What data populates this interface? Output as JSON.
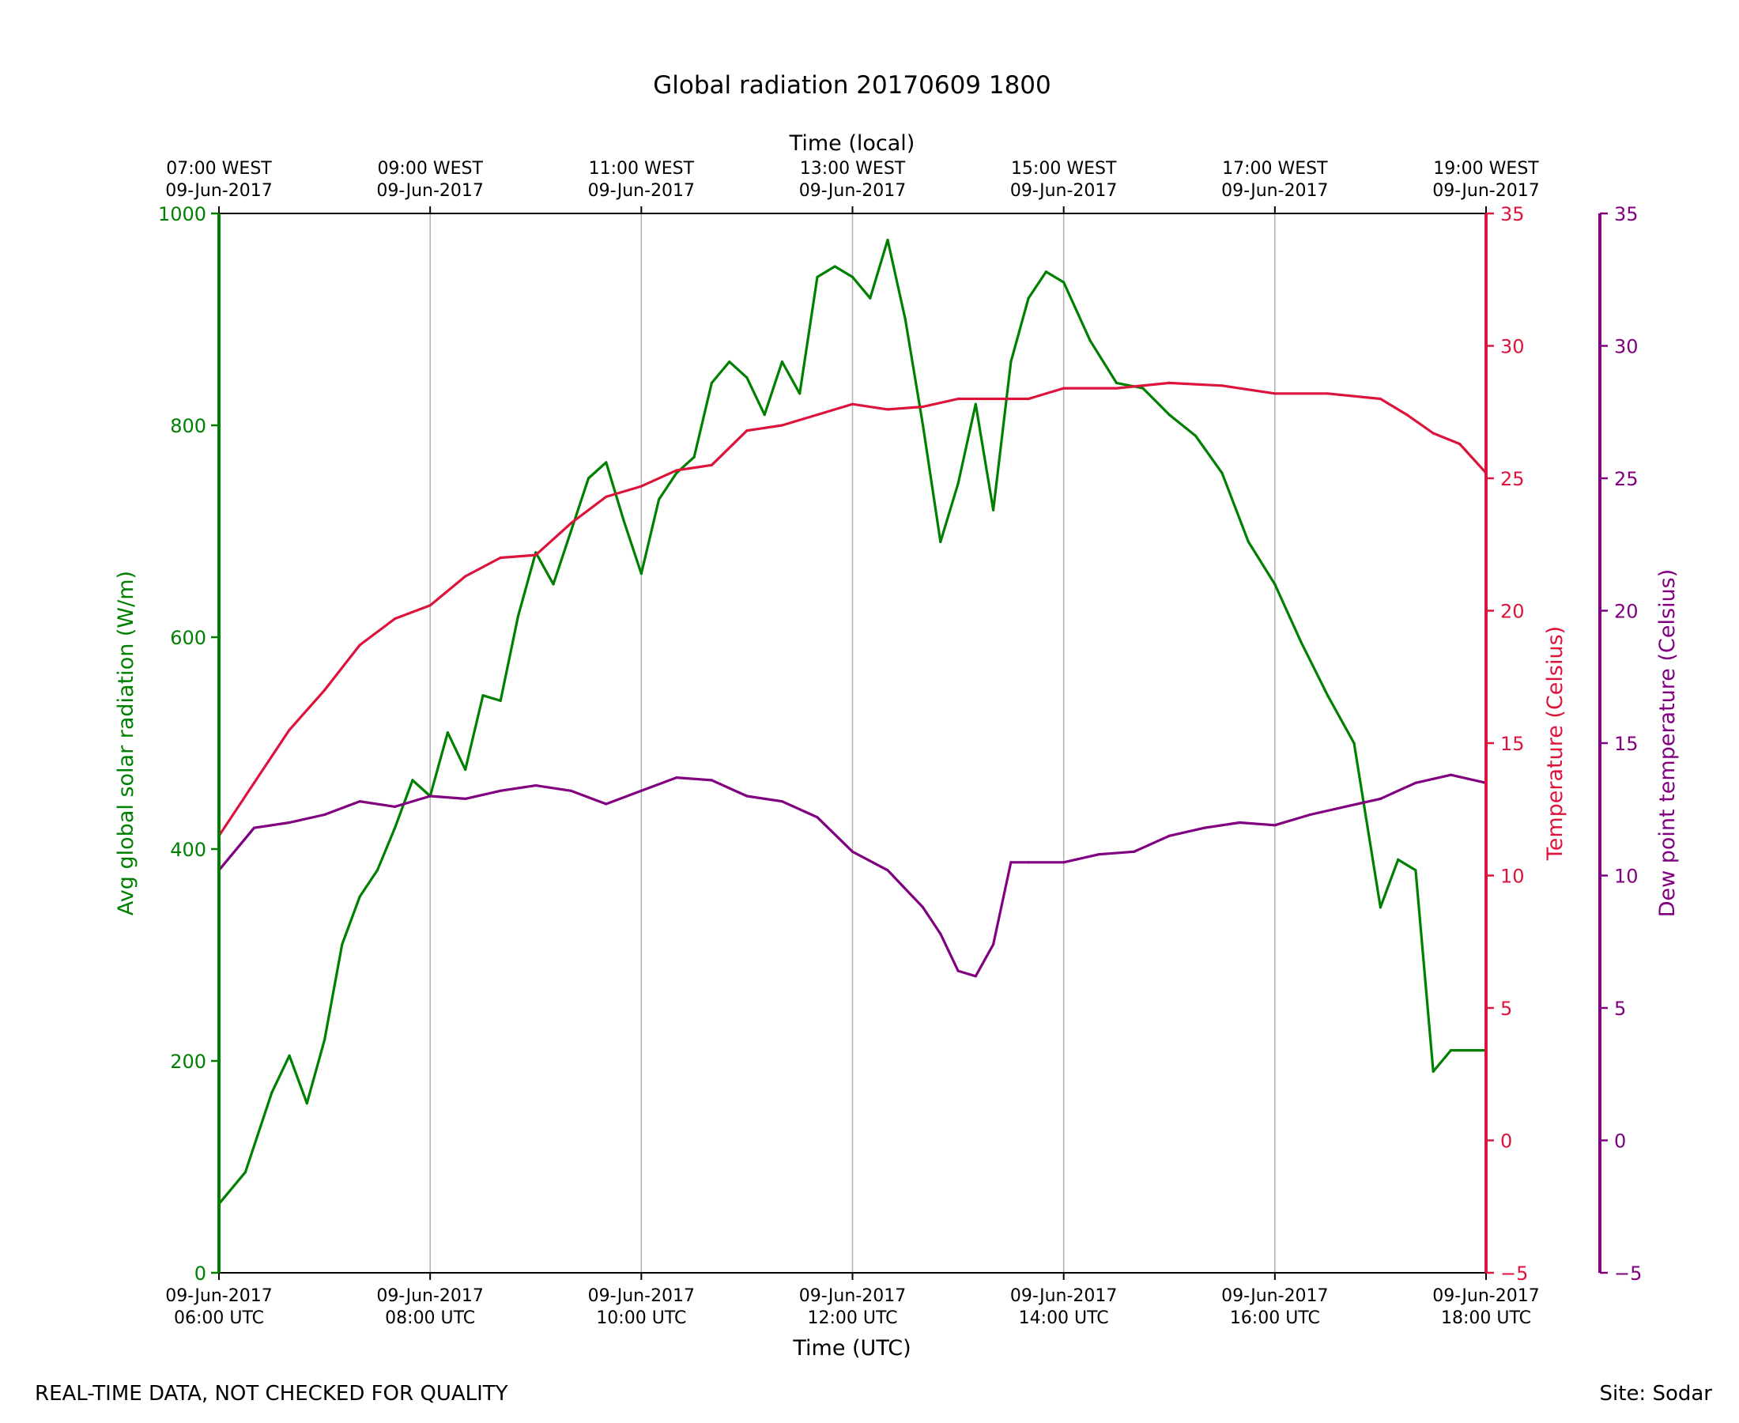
{
  "chart_data": {
    "type": "line",
    "title": "Global radiation 20170609 1800",
    "xlabel": "Time (UTC)",
    "x2label": "Time (local)",
    "xlim": [
      "06:00",
      "18:00"
    ],
    "x_ticks": [
      {
        "utc": "06:00",
        "bottom": [
          "09-Jun-2017",
          "06:00 UTC"
        ],
        "top": [
          "07:00 WEST",
          "09-Jun-2017"
        ]
      },
      {
        "utc": "08:00",
        "bottom": [
          "09-Jun-2017",
          "08:00 UTC"
        ],
        "top": [
          "09:00 WEST",
          "09-Jun-2017"
        ]
      },
      {
        "utc": "10:00",
        "bottom": [
          "09-Jun-2017",
          "10:00 UTC"
        ],
        "top": [
          "11:00 WEST",
          "09-Jun-2017"
        ]
      },
      {
        "utc": "12:00",
        "bottom": [
          "09-Jun-2017",
          "12:00 UTC"
        ],
        "top": [
          "13:00 WEST",
          "09-Jun-2017"
        ]
      },
      {
        "utc": "14:00",
        "bottom": [
          "09-Jun-2017",
          "14:00 UTC"
        ],
        "top": [
          "15:00 WEST",
          "09-Jun-2017"
        ]
      },
      {
        "utc": "16:00",
        "bottom": [
          "09-Jun-2017",
          "16:00 UTC"
        ],
        "top": [
          "17:00 WEST",
          "09-Jun-2017"
        ]
      },
      {
        "utc": "18:00",
        "bottom": [
          "09-Jun-2017",
          "18:00 UTC"
        ],
        "top": [
          "19:00 WEST",
          "09-Jun-2017"
        ]
      }
    ],
    "grid": "vertical",
    "axes": {
      "radiation": {
        "label": "Avg global solar radiation (W/m)",
        "ylim": [
          0,
          1000
        ],
        "ticks": [
          0,
          200,
          400,
          600,
          800,
          1000
        ],
        "color": "#008000"
      },
      "temperature": {
        "label": "Temperature (Celsius)",
        "ylim": [
          -5,
          35
        ],
        "ticks": [
          -5,
          0,
          5,
          10,
          15,
          20,
          25,
          30,
          35
        ],
        "color": "#dc143c"
      },
      "dewpoint": {
        "label": "Dew point temperature (Celsius)",
        "ylim": [
          -5,
          35
        ],
        "ticks": [
          -5,
          0,
          5,
          10,
          15,
          20,
          25,
          30,
          35
        ],
        "color": "#800080"
      }
    },
    "series": [
      {
        "axis": "radiation",
        "x": [
          "06:00",
          "06:15",
          "06:30",
          "06:40",
          "06:50",
          "07:00",
          "07:10",
          "07:20",
          "07:30",
          "07:40",
          "07:50",
          "08:00",
          "08:10",
          "08:20",
          "08:30",
          "08:40",
          "08:50",
          "09:00",
          "09:10",
          "09:20",
          "09:30",
          "09:40",
          "09:50",
          "10:00",
          "10:10",
          "10:20",
          "10:30",
          "10:40",
          "10:50",
          "11:00",
          "11:10",
          "11:20",
          "11:30",
          "11:40",
          "11:50",
          "12:00",
          "12:10",
          "12:20",
          "12:30",
          "12:40",
          "12:50",
          "13:00",
          "13:10",
          "13:20",
          "13:30",
          "13:40",
          "13:50",
          "14:00",
          "14:15",
          "14:30",
          "14:45",
          "15:00",
          "15:15",
          "15:30",
          "15:45",
          "16:00",
          "16:15",
          "16:30",
          "16:45",
          "17:00",
          "17:10",
          "17:20",
          "17:30",
          "17:40",
          "17:50",
          "18:00"
        ],
        "values": [
          65,
          95,
          170,
          205,
          160,
          220,
          310,
          355,
          380,
          420,
          465,
          450,
          510,
          475,
          545,
          540,
          620,
          680,
          650,
          700,
          750,
          765,
          710,
          660,
          730,
          755,
          770,
          840,
          860,
          845,
          810,
          860,
          830,
          940,
          950,
          940,
          920,
          975,
          900,
          800,
          690,
          745,
          820,
          720,
          860,
          920,
          945,
          935,
          880,
          840,
          835,
          810,
          790,
          755,
          690,
          650,
          595,
          545,
          500,
          345,
          390,
          380,
          190,
          210,
          210,
          210
        ]
      },
      {
        "axis": "temperature",
        "x": [
          "06:00",
          "06:20",
          "06:40",
          "07:00",
          "07:20",
          "07:40",
          "08:00",
          "08:20",
          "08:40",
          "09:00",
          "09:20",
          "09:40",
          "10:00",
          "10:20",
          "10:40",
          "11:00",
          "11:20",
          "11:40",
          "12:00",
          "12:20",
          "12:40",
          "13:00",
          "13:20",
          "13:40",
          "14:00",
          "14:30",
          "15:00",
          "15:30",
          "16:00",
          "16:30",
          "17:00",
          "17:15",
          "17:30",
          "17:45",
          "18:00"
        ],
        "values": [
          11.5,
          13.5,
          15.5,
          17.0,
          18.7,
          19.7,
          20.2,
          21.3,
          22.0,
          22.1,
          23.3,
          24.3,
          24.7,
          25.3,
          25.5,
          26.8,
          27.0,
          27.4,
          27.8,
          27.6,
          27.7,
          28.0,
          28.0,
          28.0,
          28.4,
          28.4,
          28.6,
          28.5,
          28.2,
          28.2,
          28.0,
          27.4,
          26.7,
          26.3,
          25.2
        ]
      },
      {
        "axis": "dewpoint",
        "x": [
          "06:00",
          "06:20",
          "06:40",
          "07:00",
          "07:20",
          "07:40",
          "08:00",
          "08:20",
          "08:40",
          "09:00",
          "09:20",
          "09:40",
          "10:00",
          "10:20",
          "10:40",
          "11:00",
          "11:20",
          "11:40",
          "12:00",
          "12:20",
          "12:40",
          "12:50",
          "13:00",
          "13:10",
          "13:20",
          "13:30",
          "13:40",
          "14:00",
          "14:20",
          "14:40",
          "15:00",
          "15:20",
          "15:40",
          "16:00",
          "16:20",
          "16:40",
          "17:00",
          "17:20",
          "17:40",
          "18:00"
        ],
        "values": [
          10.2,
          11.8,
          12.0,
          12.3,
          12.8,
          12.6,
          13.0,
          12.9,
          13.2,
          13.4,
          13.2,
          12.7,
          13.2,
          13.7,
          13.6,
          13.0,
          12.8,
          12.2,
          10.9,
          10.2,
          8.8,
          7.8,
          6.4,
          6.2,
          7.4,
          10.5,
          10.5,
          10.5,
          10.8,
          10.9,
          11.5,
          11.8,
          12.0,
          11.9,
          12.3,
          12.6,
          12.9,
          13.5,
          13.8,
          13.5
        ]
      }
    ]
  },
  "footer": {
    "note": "REAL-TIME DATA, NOT CHECKED FOR QUALITY",
    "site": "Site: Sodar"
  }
}
